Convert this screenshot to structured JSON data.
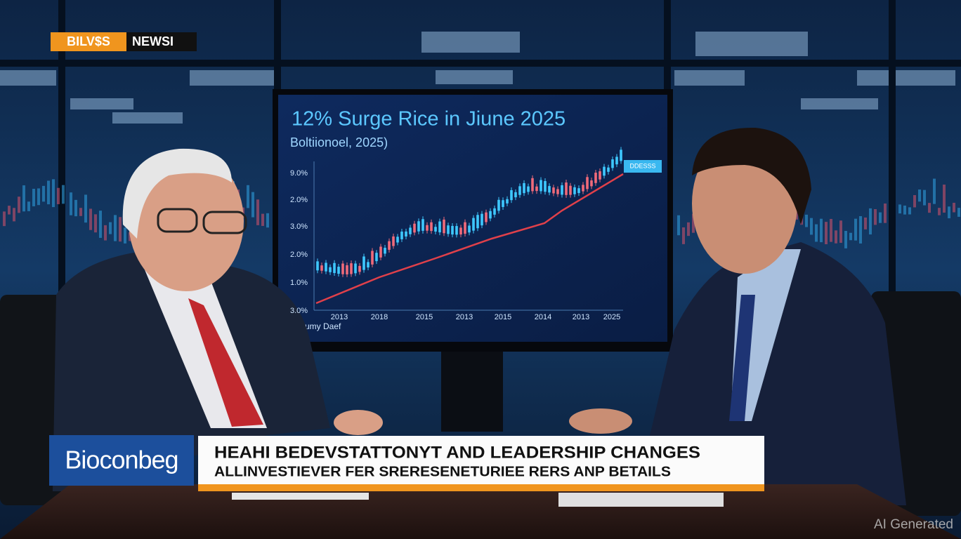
{
  "header": {
    "logo": "BILV$S",
    "section": "NEWSI"
  },
  "screen": {
    "title": "12% Surge Rice in Jiune 2025",
    "subtitle": "Boltiionoel, 2025)",
    "y_labels": [
      "9.0%",
      "2.0%",
      "3.0%",
      "2.0%",
      "1.0%",
      "3.0%"
    ],
    "x_labels": [
      "2013",
      "2018",
      "2015",
      "2013",
      "2015",
      "2014",
      "2013",
      "2025"
    ],
    "legend": "Jumy Daef",
    "callout": "DDESSS"
  },
  "lower_third": {
    "brand": "Bioconbeg",
    "headline": "HEAHI BEDEVSTATTONYT AND LEADERSHIP CHANGES",
    "subline": "ALLINVESTIEVER FER SRERESENETURIEE RERS ANP BETAILS"
  },
  "watermark": "AI Generated"
}
